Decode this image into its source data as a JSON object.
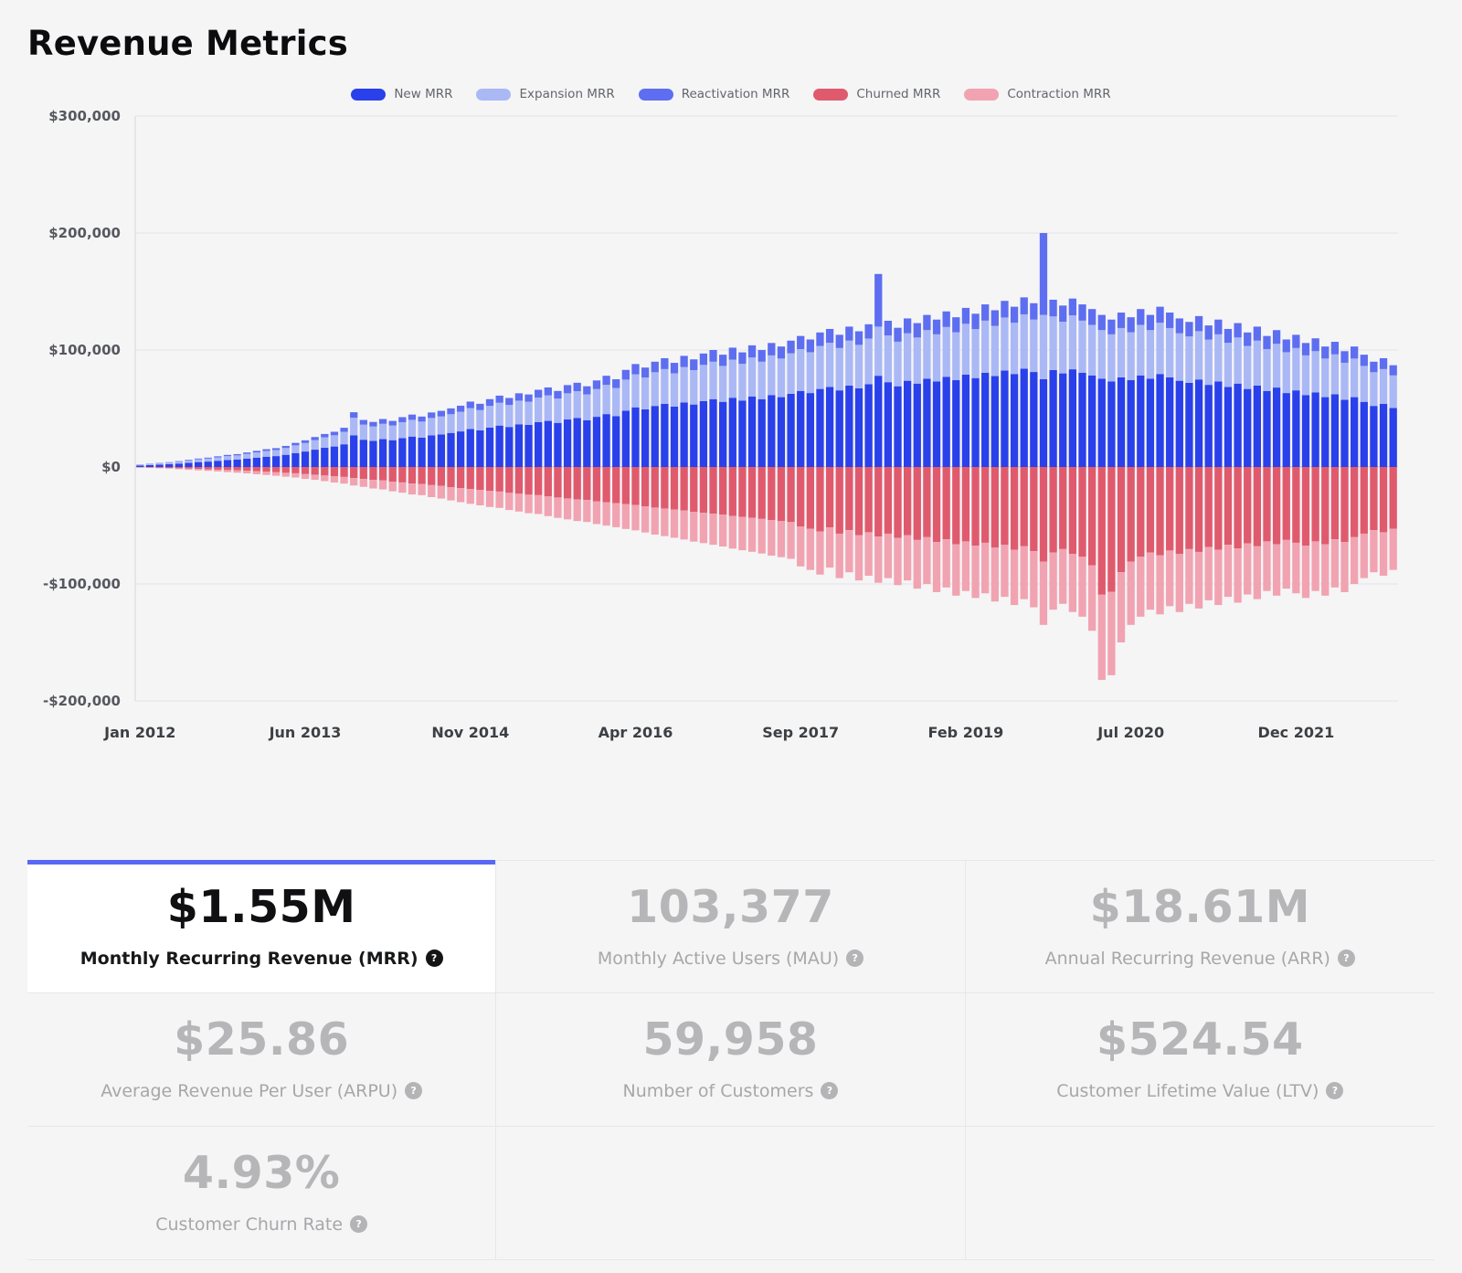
{
  "title": "Revenue Metrics",
  "icons": {
    "help": "?"
  },
  "colors": {
    "accent": "#5868f5",
    "active_text": "#101012",
    "inactive_text": "#b6b6b8",
    "background": "#f5f5f6"
  },
  "chart_data": {
    "type": "bar",
    "stacked": true,
    "grid": true,
    "legend_position": "top",
    "ylim": [
      -200000,
      300000
    ],
    "y_ticks": [
      {
        "value": 300000,
        "label": "$300,000"
      },
      {
        "value": 200000,
        "label": "$200,000"
      },
      {
        "value": 100000,
        "label": "$100,000"
      },
      {
        "value": 0,
        "label": "$0"
      },
      {
        "value": -100000,
        "label": "-$100,000"
      },
      {
        "value": -200000,
        "label": "-$200,000"
      }
    ],
    "x_ticks": [
      {
        "index": 0,
        "label": "Jan 2012"
      },
      {
        "index": 17,
        "label": "Jun 2013"
      },
      {
        "index": 34,
        "label": "Nov 2014"
      },
      {
        "index": 51,
        "label": "Apr 2016"
      },
      {
        "index": 68,
        "label": "Sep 2017"
      },
      {
        "index": 85,
        "label": "Feb 2019"
      },
      {
        "index": 102,
        "label": "Jul 2020"
      },
      {
        "index": 119,
        "label": "Dec 2021"
      }
    ],
    "x": [
      "Jan 2012",
      "Feb 2012",
      "Mar 2012",
      "Apr 2012",
      "May 2012",
      "Jun 2012",
      "Jul 2012",
      "Aug 2012",
      "Sep 2012",
      "Oct 2012",
      "Nov 2012",
      "Dec 2012",
      "Jan 2013",
      "Feb 2013",
      "Mar 2013",
      "Apr 2013",
      "May 2013",
      "Jun 2013",
      "Jul 2013",
      "Aug 2013",
      "Sep 2013",
      "Oct 2013",
      "Nov 2013",
      "Dec 2013",
      "Jan 2014",
      "Feb 2014",
      "Mar 2014",
      "Apr 2014",
      "May 2014",
      "Jun 2014",
      "Jul 2014",
      "Aug 2014",
      "Sep 2014",
      "Oct 2014",
      "Nov 2014",
      "Dec 2014",
      "Jan 2015",
      "Feb 2015",
      "Mar 2015",
      "Apr 2015",
      "May 2015",
      "Jun 2015",
      "Jul 2015",
      "Aug 2015",
      "Sep 2015",
      "Oct 2015",
      "Nov 2015",
      "Dec 2015",
      "Jan 2016",
      "Feb 2016",
      "Mar 2016",
      "Apr 2016",
      "May 2016",
      "Jun 2016",
      "Jul 2016",
      "Aug 2016",
      "Sep 2016",
      "Oct 2016",
      "Nov 2016",
      "Dec 2016",
      "Jan 2017",
      "Feb 2017",
      "Mar 2017",
      "Apr 2017",
      "May 2017",
      "Jun 2017",
      "Jul 2017",
      "Aug 2017",
      "Sep 2017",
      "Oct 2017",
      "Nov 2017",
      "Dec 2017",
      "Jan 2018",
      "Feb 2018",
      "Mar 2018",
      "Apr 2018",
      "May 2018",
      "Jun 2018",
      "Jul 2018",
      "Aug 2018",
      "Sep 2018",
      "Oct 2018",
      "Nov 2018",
      "Dec 2018",
      "Jan 2019",
      "Feb 2019",
      "Mar 2019",
      "Apr 2019",
      "May 2019",
      "Jun 2019",
      "Jul 2019",
      "Aug 2019",
      "Sep 2019",
      "Oct 2019",
      "Nov 2019",
      "Dec 2019",
      "Jan 2020",
      "Feb 2020",
      "Mar 2020",
      "Apr 2020",
      "May 2020",
      "Jun 2020",
      "Jul 2020",
      "Aug 2020",
      "Sep 2020",
      "Oct 2020",
      "Nov 2020",
      "Dec 2020",
      "Jan 2021",
      "Feb 2021",
      "Mar 2021",
      "Apr 2021",
      "May 2021",
      "Jun 2021",
      "Jul 2021",
      "Aug 2021",
      "Sep 2021",
      "Oct 2021",
      "Nov 2021",
      "Dec 2021",
      "Jan 2022",
      "Feb 2022",
      "Mar 2022",
      "Apr 2022",
      "May 2022",
      "Jun 2022",
      "Jul 2022",
      "Aug 2022",
      "Sep 2022",
      "Oct 2022"
    ],
    "series": [
      {
        "name": "New MRR",
        "color": "#2940ea",
        "values": [
          1200,
          1600,
          2000,
          2400,
          2900,
          3500,
          4200,
          4600,
          5300,
          6000,
          6400,
          7200,
          8000,
          8800,
          9300,
          10400,
          11900,
          13200,
          14800,
          16400,
          17500,
          19400,
          27100,
          23300,
          22300,
          23800,
          22900,
          24700,
          26000,
          25000,
          27000,
          27800,
          29100,
          30400,
          32400,
          31300,
          33600,
          35400,
          34200,
          36500,
          36000,
          38300,
          39400,
          37700,
          40600,
          41800,
          40000,
          42900,
          45200,
          43500,
          48100,
          51000,
          49300,
          52200,
          53900,
          51600,
          55100,
          53400,
          56300,
          58000,
          55700,
          59200,
          56800,
          60300,
          58000,
          61500,
          59700,
          62600,
          65000,
          63200,
          66700,
          68400,
          65500,
          69600,
          67300,
          70800,
          78000,
          72500,
          69000,
          73700,
          71300,
          75400,
          73100,
          77100,
          74200,
          78900,
          76000,
          80600,
          77700,
          82400,
          79500,
          84100,
          81200,
          75000,
          82900,
          80000,
          83500,
          80600,
          78300,
          75400,
          73100,
          76600,
          74200,
          78300,
          75400,
          79500,
          76600,
          73700,
          71900,
          74800,
          70200,
          73100,
          68400,
          71300,
          66700,
          69600,
          65000,
          67900,
          63200,
          65500,
          61500,
          63800,
          59700,
          62100,
          57400,
          59700,
          55700,
          52200,
          53900,
          50500
        ]
      },
      {
        "name": "Expansion MRR",
        "color": "#aab8f5",
        "values": [
          700,
          900,
          1100,
          1300,
          1600,
          2000,
          2300,
          2600,
          2900,
          3300,
          3500,
          4000,
          4400,
          4900,
          5200,
          5800,
          6600,
          7300,
          8200,
          9000,
          9600,
          10700,
          15000,
          12900,
          12300,
          13100,
          12600,
          13600,
          14300,
          13800,
          14900,
          15400,
          16000,
          16800,
          17900,
          17300,
          18600,
          19500,
          18900,
          20200,
          19800,
          21100,
          21800,
          20800,
          22400,
          23000,
          22100,
          23700,
          25000,
          24000,
          26600,
          28200,
          27200,
          28800,
          29800,
          28500,
          30400,
          29400,
          31000,
          32000,
          30700,
          32600,
          31400,
          33300,
          32000,
          33900,
          33000,
          34600,
          35800,
          34900,
          36800,
          37800,
          36200,
          38400,
          37100,
          39000,
          42000,
          40000,
          38100,
          40600,
          39400,
          41600,
          40300,
          42600,
          41000,
          43500,
          41900,
          44500,
          42900,
          45400,
          43800,
          46400,
          44800,
          55000,
          45800,
          44200,
          46100,
          44500,
          43200,
          41600,
          40300,
          42200,
          41000,
          43200,
          41600,
          43800,
          42200,
          40600,
          39700,
          41300,
          38700,
          40300,
          37800,
          39400,
          36800,
          38400,
          35800,
          37400,
          34900,
          36200,
          33900,
          35200,
          33000,
          34200,
          31700,
          33000,
          30700,
          28800,
          29800,
          27800
        ]
      },
      {
        "name": "Reactivation MRR",
        "color": "#5e6ef0",
        "values": [
          200,
          300,
          300,
          400,
          500,
          600,
          700,
          800,
          900,
          1000,
          1100,
          1200,
          1400,
          1500,
          1600,
          1800,
          2100,
          2300,
          2600,
          2800,
          3000,
          3400,
          4700,
          4000,
          3900,
          4100,
          3900,
          4300,
          4500,
          4300,
          4700,
          4800,
          5000,
          5200,
          5600,
          5400,
          5800,
          6100,
          5900,
          6300,
          6200,
          6600,
          6800,
          6500,
          7000,
          7200,
          6900,
          7400,
          7800,
          7500,
          8300,
          8800,
          8500,
          9000,
          9300,
          8900,
          9500,
          9200,
          9700,
          10000,
          9600,
          10200,
          9800,
          10400,
          10000,
          10600,
          10300,
          10800,
          11200,
          10900,
          11500,
          11800,
          11300,
          12000,
          11600,
          12200,
          45000,
          12500,
          11900,
          12700,
          12300,
          13000,
          12600,
          13300,
          12800,
          13600,
          13100,
          13900,
          13400,
          14200,
          13700,
          14500,
          14000,
          70000,
          14300,
          13800,
          14400,
          13900,
          13500,
          13000,
          12600,
          13200,
          12800,
          13500,
          13000,
          13700,
          13200,
          12700,
          12400,
          12900,
          12100,
          12600,
          11800,
          12300,
          11500,
          12000,
          11200,
          11700,
          10900,
          11300,
          10600,
          11000,
          10300,
          10700,
          9900,
          10300,
          9600,
          9000,
          9300,
          8700
        ]
      },
      {
        "name": "Churned MRR",
        "color": "#e05a6d",
        "values": [
          -300,
          -500,
          -700,
          -900,
          -1100,
          -1400,
          -1700,
          -2000,
          -2300,
          -2600,
          -2900,
          -3300,
          -3700,
          -4100,
          -4500,
          -5000,
          -5400,
          -6100,
          -6600,
          -7300,
          -8000,
          -8500,
          -9500,
          -10200,
          -11000,
          -11500,
          -12500,
          -13200,
          -14100,
          -14500,
          -15500,
          -16200,
          -17200,
          -18100,
          -18900,
          -19700,
          -20500,
          -21000,
          -22100,
          -22900,
          -23700,
          -24100,
          -25200,
          -26100,
          -26900,
          -27700,
          -28200,
          -29300,
          -30100,
          -30900,
          -31800,
          -32500,
          -33600,
          -34700,
          -35500,
          -36300,
          -37200,
          -38300,
          -39100,
          -39900,
          -40800,
          -41900,
          -42700,
          -43500,
          -44400,
          -45500,
          -46300,
          -47100,
          -51000,
          -52800,
          -55200,
          -51600,
          -57000,
          -54000,
          -58200,
          -55800,
          -59400,
          -57000,
          -60600,
          -58200,
          -62400,
          -60000,
          -64200,
          -61800,
          -66000,
          -63600,
          -67200,
          -64800,
          -69000,
          -66600,
          -70800,
          -67800,
          -72000,
          -81000,
          -73200,
          -70200,
          -74400,
          -76800,
          -84000,
          -109200,
          -106800,
          -90000,
          -81000,
          -76800,
          -73200,
          -75600,
          -71400,
          -74400,
          -70200,
          -72600,
          -68400,
          -70800,
          -66600,
          -69600,
          -65400,
          -67800,
          -63600,
          -66000,
          -62400,
          -64800,
          -67200,
          -63600,
          -66000,
          -61800,
          -64200,
          -60000,
          -57000,
          -54000,
          -55800,
          -52800
        ]
      },
      {
        "name": "Contraction MRR",
        "color": "#f1a3b1",
        "values": [
          -200,
          -300,
          -400,
          -600,
          -800,
          -1000,
          -1200,
          -1300,
          -1500,
          -1800,
          -2000,
          -2200,
          -2500,
          -2700,
          -3000,
          -3300,
          -3600,
          -4100,
          -4400,
          -4800,
          -5300,
          -5700,
          -6300,
          -6800,
          -7400,
          -7700,
          -8300,
          -8800,
          -9400,
          -9600,
          -10300,
          -10800,
          -11400,
          -12000,
          -12600,
          -13100,
          -13700,
          -14000,
          -14700,
          -15200,
          -15800,
          -16100,
          -16800,
          -17400,
          -17900,
          -18500,
          -18800,
          -19500,
          -20000,
          -20600,
          -21200,
          -21700,
          -22400,
          -23100,
          -23600,
          -24200,
          -24800,
          -25500,
          -26000,
          -26600,
          -27200,
          -27900,
          -28500,
          -29000,
          -29600,
          -30300,
          -30800,
          -31400,
          -34000,
          -35200,
          -36800,
          -34400,
          -38000,
          -36000,
          -38800,
          -37200,
          -39600,
          -38000,
          -40400,
          -38800,
          -41600,
          -40000,
          -42800,
          -41200,
          -44000,
          -42400,
          -44800,
          -43200,
          -46000,
          -44400,
          -47200,
          -45200,
          -48000,
          -54000,
          -48800,
          -46800,
          -49600,
          -51200,
          -56000,
          -72800,
          -71200,
          -60000,
          -54000,
          -51200,
          -48800,
          -50400,
          -47600,
          -49600,
          -46800,
          -48400,
          -45600,
          -47200,
          -44400,
          -46400,
          -43600,
          -45200,
          -42400,
          -44000,
          -41600,
          -43200,
          -44800,
          -42400,
          -44000,
          -41200,
          -42800,
          -40000,
          -38000,
          -36000,
          -37200,
          -35200
        ]
      }
    ]
  },
  "metrics": [
    {
      "id": "mrr",
      "value": "$1.55M",
      "label": "Monthly Recurring Revenue (MRR)",
      "active": true
    },
    {
      "id": "mau",
      "value": "103,377",
      "label": "Monthly Active Users (MAU)",
      "active": false
    },
    {
      "id": "arr",
      "value": "$18.61M",
      "label": "Annual Recurring Revenue (ARR)",
      "active": false
    },
    {
      "id": "arpu",
      "value": "$25.86",
      "label": "Average Revenue Per User (ARPU)",
      "active": false
    },
    {
      "id": "customers",
      "value": "59,958",
      "label": "Number of Customers",
      "active": false
    },
    {
      "id": "ltv",
      "value": "$524.54",
      "label": "Customer Lifetime Value (LTV)",
      "active": false
    },
    {
      "id": "churn",
      "value": "4.93%",
      "label": "Customer Churn Rate",
      "active": false
    }
  ]
}
